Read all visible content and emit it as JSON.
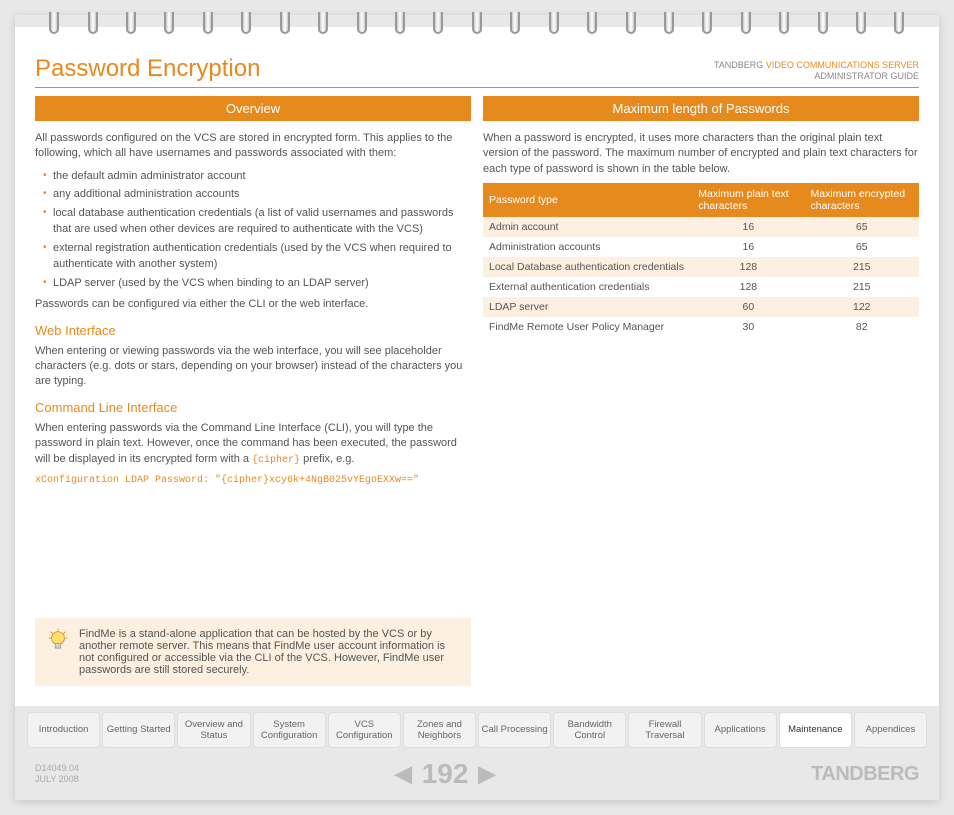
{
  "header": {
    "title": "Password Encryption",
    "brand_prefix": "TANDBERG",
    "brand_product": "VIDEO COMMUNICATIONS SERVER",
    "brand_sub": "ADMINISTRATOR GUIDE"
  },
  "left": {
    "section_title": "Overview",
    "intro": "All passwords configured on the VCS are stored in encrypted form.  This applies to the following, which all have usernames and passwords associated with them:",
    "bullets": [
      "the default admin administrator account",
      "any additional administration accounts",
      "local database authentication credentials (a list of valid usernames and passwords that are used when other devices are required to authenticate with the VCS)",
      "external registration authentication credentials (used by the VCS when required to authenticate with another system)",
      "LDAP server (used by the VCS when binding to an LDAP server)"
    ],
    "after_list": "Passwords can be configured via either the CLI or the web interface.",
    "web_head": "Web Interface",
    "web_body": "When entering or viewing passwords via the web interface, you will see placeholder characters (e.g. dots or stars, depending on your browser) instead of the characters you are typing.",
    "cli_head": "Command Line Interface",
    "cli_body_1": "When entering passwords via the Command Line Interface (CLI), you will type the password in plain text.  However, once the command has been executed, the password will be displayed in its encrypted form with a ",
    "cli_cipher": "{cipher}",
    "cli_body_2": " prefix, e.g.",
    "cli_example": "xConfiguration LDAP Password: \"{cipher}xcy6k+4NgB025vYEgoEXXw==\"",
    "tip": "FindMe is a stand-alone application that can be hosted by the VCS or by another remote server.  This means that FindMe user account information is not configured or accessible via the CLI of the VCS.  However, FindMe user passwords are still stored securely."
  },
  "right": {
    "section_title": "Maximum length of Passwords",
    "intro": "When a password is encrypted, it uses more characters than the original plain text version of the password.  The maximum number of encrypted and plain text characters for each type of password is shown in the table below.",
    "table": {
      "headers": [
        "Password type",
        "Maximum plain text characters",
        "Maximum encrypted characters"
      ],
      "rows": [
        [
          "Admin account",
          "16",
          "65"
        ],
        [
          "Administration accounts",
          "16",
          "65"
        ],
        [
          "Local Database authentication credentials",
          "128",
          "215"
        ],
        [
          "External authentication credentials",
          "128",
          "215"
        ],
        [
          "LDAP server",
          "60",
          "122"
        ],
        [
          "FindMe Remote User Policy Manager",
          "30",
          "82"
        ]
      ]
    }
  },
  "nav": {
    "tabs": [
      "Introduction",
      "Getting Started",
      "Overview and Status",
      "System Configuration",
      "VCS Configuration",
      "Zones and Neighbors",
      "Call Processing",
      "Bandwidth Control",
      "Firewall Traversal",
      "Applications",
      "Maintenance",
      "Appendices"
    ],
    "active_index": 10
  },
  "footer": {
    "doc_id": "D14049.04",
    "date": "JULY 2008",
    "page": "192",
    "brand": "TANDBERG"
  },
  "spiral_count": 23,
  "colors": {
    "accent": "#e78a1e",
    "tip_bg": "#fdf0e0"
  }
}
